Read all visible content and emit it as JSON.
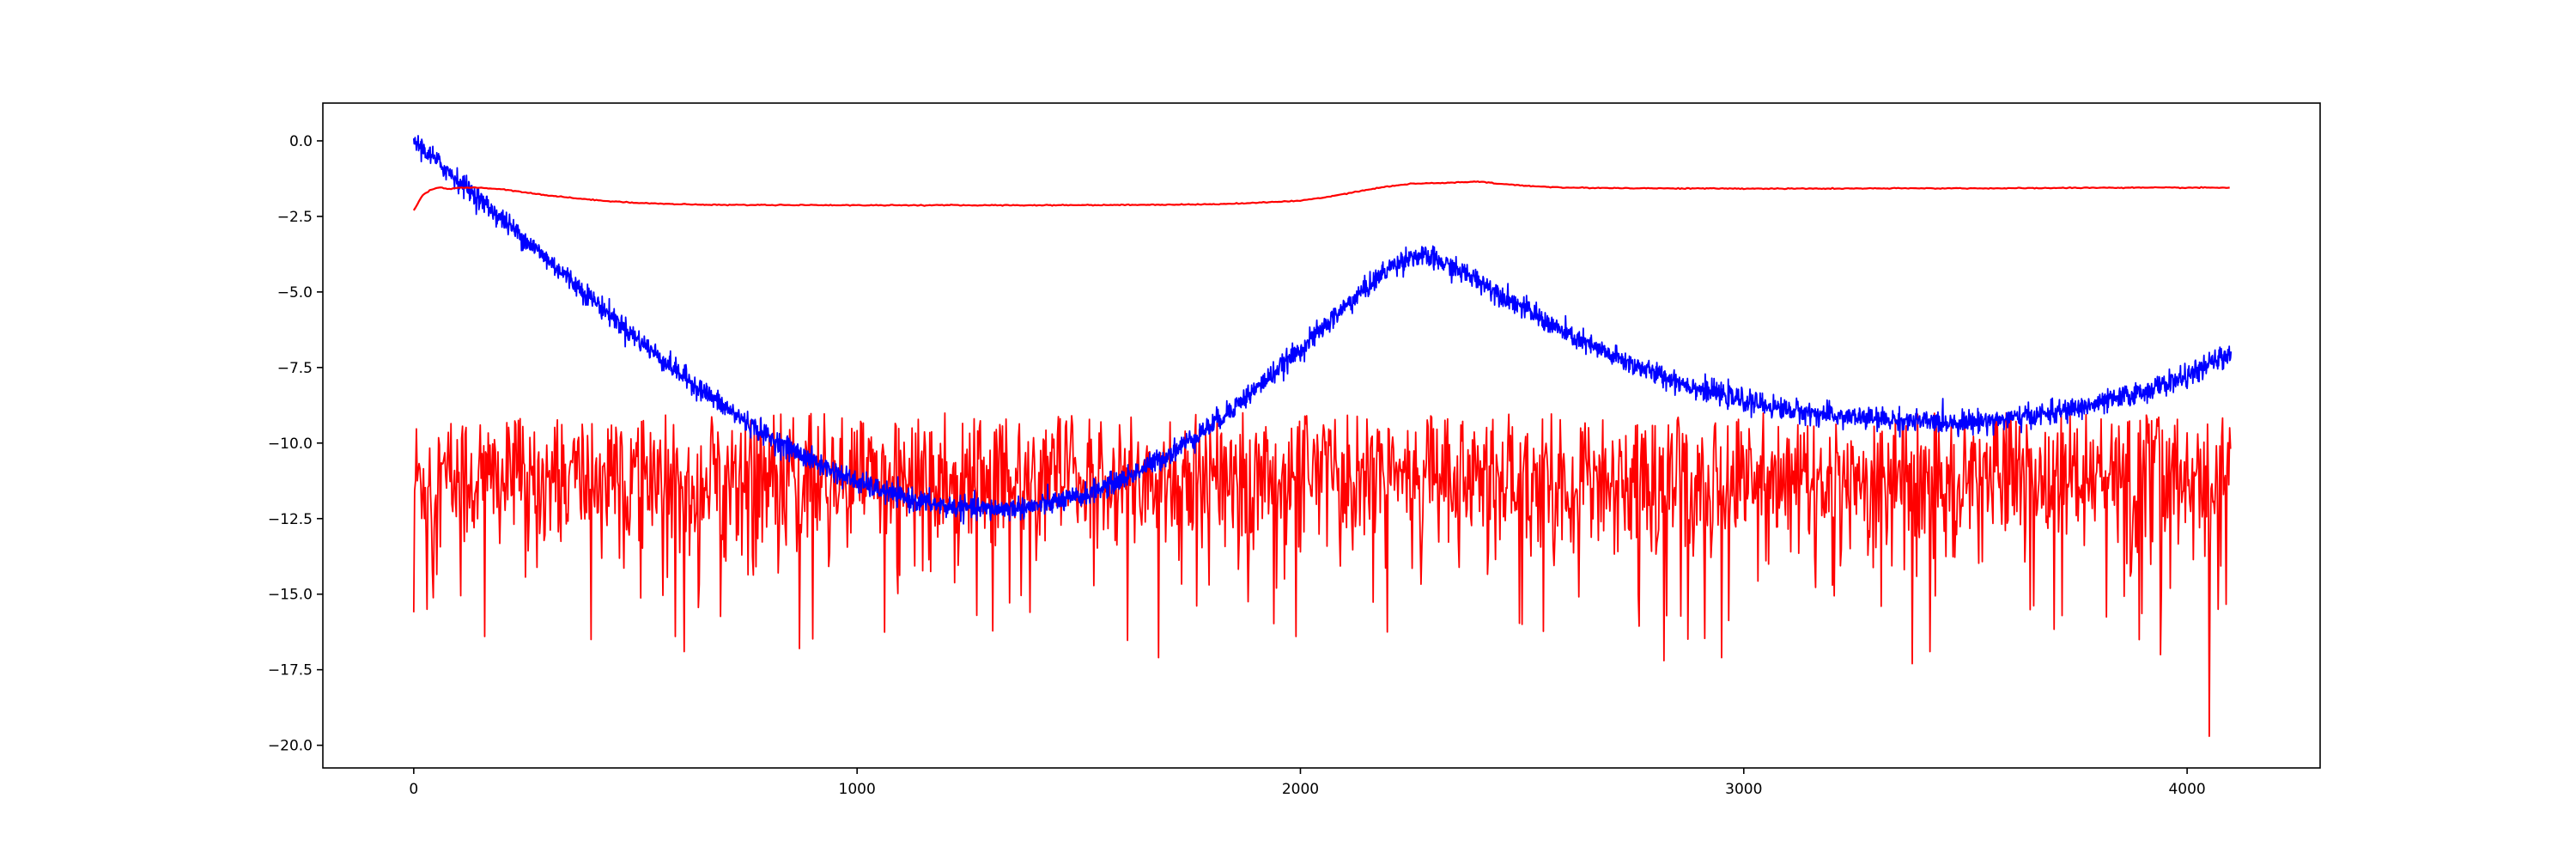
{
  "chart_data": {
    "type": "line",
    "title": "",
    "xlabel": "",
    "ylabel": "",
    "xlim": [
      -205,
      4300
    ],
    "ylim": [
      -20.75,
      1.25
    ],
    "xticks": [
      0,
      1000,
      2000,
      3000,
      4000
    ],
    "xtick_labels": [
      "0",
      "1000",
      "2000",
      "3000",
      "4000"
    ],
    "yticks": [
      0.0,
      -2.5,
      -5.0,
      -7.5,
      -10.0,
      -12.5,
      -15.0,
      -17.5,
      -20.0
    ],
    "ytick_labels": [
      "0.0",
      "−2.5",
      "−5.0",
      "−7.5",
      "−10.0",
      "−12.5",
      "−15.0",
      "−17.5",
      "−20.0"
    ],
    "grid": false,
    "legend": "none",
    "n_points": 4100,
    "series": [
      {
        "color": "#0000ff",
        "style": "noisy",
        "noise_amplitude": 0.18,
        "x": [
          0,
          100,
          200,
          300,
          400,
          500,
          600,
          700,
          800,
          900,
          1000,
          1100,
          1200,
          1300,
          1400,
          1500,
          1600,
          1700,
          1800,
          1900,
          2000,
          2100,
          2200,
          2250,
          2300,
          2400,
          2500,
          2600,
          2700,
          2800,
          2900,
          3000,
          3100,
          3200,
          3300,
          3400,
          3500,
          3600,
          3700,
          3800,
          3900,
          4000,
          4100
        ],
        "y": [
          0.0,
          -1.3,
          -2.6,
          -3.9,
          -5.2,
          -6.5,
          -7.7,
          -8.8,
          -9.8,
          -10.6,
          -11.3,
          -11.8,
          -12.1,
          -12.2,
          -12.1,
          -11.8,
          -11.2,
          -10.4,
          -9.4,
          -8.2,
          -6.9,
          -5.5,
          -4.2,
          -3.8,
          -3.9,
          -4.6,
          -5.5,
          -6.4,
          -7.1,
          -7.7,
          -8.2,
          -8.6,
          -8.9,
          -9.1,
          -9.2,
          -9.3,
          -9.3,
          -9.2,
          -9.0,
          -8.7,
          -8.3,
          -7.8,
          -7.0
        ]
      },
      {
        "color": "#ff0000",
        "style": "smooth",
        "x": [
          0,
          20,
          40,
          60,
          80,
          100,
          150,
          200,
          300,
          400,
          500,
          600,
          700,
          800,
          1000,
          1200,
          1400,
          1600,
          1800,
          1900,
          2000,
          2050,
          2100,
          2150,
          2200,
          2250,
          2300,
          2350,
          2400,
          2450,
          2500,
          2600,
          2800,
          3000,
          3200,
          3400,
          3600,
          3800,
          4000,
          4100
        ],
        "y": [
          -2.3,
          -1.8,
          -1.6,
          -1.55,
          -1.6,
          -1.55,
          -1.55,
          -1.6,
          -1.8,
          -1.95,
          -2.05,
          -2.1,
          -2.12,
          -2.12,
          -2.13,
          -2.13,
          -2.13,
          -2.12,
          -2.1,
          -2.05,
          -1.98,
          -1.88,
          -1.75,
          -1.62,
          -1.5,
          -1.42,
          -1.4,
          -1.38,
          -1.35,
          -1.42,
          -1.48,
          -1.55,
          -1.57,
          -1.58,
          -1.58,
          -1.57,
          -1.57,
          -1.55,
          -1.55,
          -1.55
        ]
      },
      {
        "color": "#ff0000",
        "style": "spiky",
        "mean": -11.2,
        "spread": 1.2,
        "x": [
          0,
          30,
          160,
          400,
          590,
          610,
          870,
          1270,
          1390,
          1680,
          1990,
          2500,
          2820,
          2950,
          3380,
          3420,
          3940,
          4050,
          4070
        ],
        "y": [
          -15.6,
          -15.5,
          -16.4,
          -16.5,
          -16.4,
          -16.9,
          -16.8,
          -15.7,
          -15.6,
          -17.1,
          -16.4,
          -16.0,
          -17.2,
          -17.1,
          -17.3,
          -16.9,
          -17.0,
          -19.7,
          -15.5
        ]
      }
    ]
  }
}
